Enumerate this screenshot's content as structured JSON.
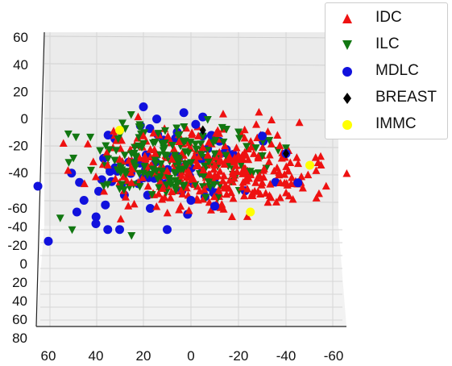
{
  "chart_data": {
    "type": "scatter",
    "projection": "3d",
    "title": "",
    "axes": {
      "x": {
        "ticks": [
          "60",
          "40",
          "20",
          "0",
          "-20",
          "-40",
          "-60"
        ]
      },
      "y": {
        "ticks": [
          "60",
          "40",
          "20",
          "0",
          "-20",
          "-40",
          "-60",
          "80"
        ]
      },
      "z": {
        "ticks": [
          "60",
          "40",
          "20",
          "0",
          "-20",
          "-40"
        ]
      }
    },
    "axis_labels": {
      "x_ticks": [
        {
          "label": "60",
          "x": 60
        },
        {
          "label": "40",
          "x": 40
        },
        {
          "label": "20",
          "x": 20
        },
        {
          "label": "0",
          "x": 0
        },
        {
          "label": "-20",
          "x": -20
        },
        {
          "label": "-40",
          "x": -40
        },
        {
          "label": "-60",
          "x": -60
        }
      ],
      "z_ticks": [
        {
          "label": "60",
          "z": 60
        },
        {
          "label": "40",
          "z": 40
        },
        {
          "label": "20",
          "z": 20
        },
        {
          "label": "0",
          "z": 0
        },
        {
          "label": "-20",
          "z": -20
        },
        {
          "label": "-40",
          "z": -40
        }
      ],
      "y_ticks": [
        {
          "label": "-60",
          "y": -60
        },
        {
          "label": "-40",
          "y": -40
        },
        {
          "label": "-20",
          "y": -20
        },
        {
          "label": "0",
          "y": 0
        },
        {
          "label": "20",
          "y": 20
        },
        {
          "label": "40",
          "y": 40
        },
        {
          "label": "60",
          "y": 60
        },
        {
          "label": "80",
          "y": 80
        }
      ]
    },
    "grid": true,
    "legend_position": "top-right",
    "series": [
      {
        "name": "IDC",
        "color": "#ee1111",
        "marker": "triangle-up",
        "sample_points": [
          [
            20,
            25
          ],
          [
            15,
            10
          ],
          [
            10,
            -5
          ],
          [
            0,
            -10
          ],
          [
            -10,
            0
          ],
          [
            -20,
            5
          ],
          [
            -30,
            -15
          ],
          [
            5,
            20
          ],
          [
            -5,
            15
          ],
          [
            25,
            -15
          ],
          [
            30,
            5
          ],
          [
            12,
            -20
          ],
          [
            -15,
            -25
          ],
          [
            -35,
            -5
          ],
          [
            40,
            -10
          ],
          [
            35,
            0
          ],
          [
            8,
            5
          ],
          [
            -8,
            -8
          ]
        ]
      },
      {
        "name": "ILC",
        "color": "#117711",
        "marker": "triangle-down",
        "sample_points": [
          [
            15,
            20
          ],
          [
            5,
            5
          ],
          [
            -10,
            10
          ],
          [
            -25,
            -5
          ],
          [
            25,
            10
          ],
          [
            30,
            -20
          ],
          [
            -40,
            15
          ],
          [
            55,
            -45
          ],
          [
            50,
            -55
          ],
          [
            25,
            -60
          ],
          [
            -5,
            25
          ]
        ]
      },
      {
        "name": "MDLC",
        "color": "#1111dd",
        "marker": "circle",
        "sample_points": [
          [
            20,
            50
          ],
          [
            3,
            45
          ],
          [
            -2,
            35
          ],
          [
            -30,
            25
          ],
          [
            -40,
            10
          ],
          [
            45,
            -30
          ],
          [
            40,
            -50
          ],
          [
            35,
            -55
          ],
          [
            30,
            -55
          ],
          [
            10,
            -55
          ],
          [
            -10,
            -35
          ],
          [
            0,
            -30
          ],
          [
            60,
            -65
          ],
          [
            48,
            -40
          ],
          [
            -45,
            -15
          ]
        ]
      },
      {
        "name": "BREAST",
        "color": "#000000",
        "marker": "diamond",
        "sample_points": [
          [
            -5,
            30
          ],
          [
            -40,
            10
          ]
        ]
      },
      {
        "name": "IMMC",
        "color": "#ffff00",
        "marker": "circle",
        "sample_points": [
          [
            30,
            30
          ],
          [
            -25,
            -40
          ],
          [
            -50,
            0
          ]
        ]
      }
    ]
  },
  "legend": {
    "items": [
      {
        "label": "IDC",
        "color": "#ee1111",
        "icon": "triangle-up-marker"
      },
      {
        "label": "ILC",
        "color": "#117711",
        "icon": "triangle-down-marker"
      },
      {
        "label": "MDLC",
        "color": "#1111dd",
        "icon": "circle-marker"
      },
      {
        "label": "BREAST",
        "color": "#000000",
        "icon": "diamond-marker"
      },
      {
        "label": "IMMC",
        "color": "#ffff00",
        "icon": "circle-marker"
      }
    ]
  }
}
